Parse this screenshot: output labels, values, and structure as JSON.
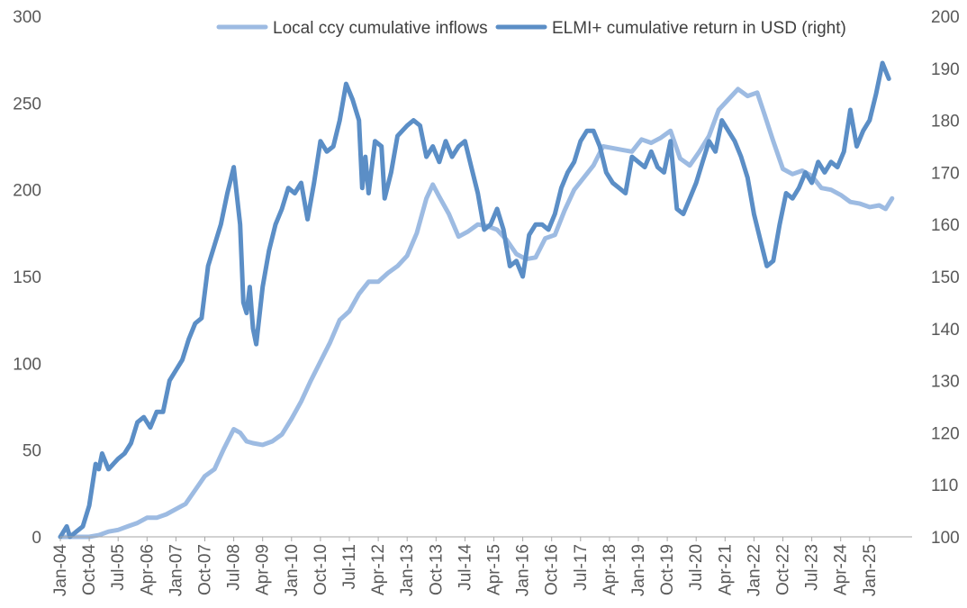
{
  "chart_data": {
    "type": "line",
    "title": "",
    "xlabel": "",
    "ylabel": "",
    "x_tick_labels": [
      "Jan-04",
      "Oct-04",
      "Jul-05",
      "Apr-06",
      "Jan-07",
      "Oct-07",
      "Jul-08",
      "Apr-09",
      "Jan-10",
      "Oct-10",
      "Jul-11",
      "Apr-12",
      "Jan-13",
      "Oct-13",
      "Jul-14",
      "Apr-15",
      "Jan-16",
      "Oct-16",
      "Jul-17",
      "Apr-18",
      "Jan-19",
      "Oct-19",
      "Jul-20",
      "Apr-21",
      "Jan-22",
      "Oct-22",
      "Jul-23",
      "Apr-24",
      "Jan-25"
    ],
    "y_left": {
      "ylim": [
        0,
        300
      ],
      "ticks": [
        "0",
        "50",
        "100",
        "150",
        "200",
        "250",
        "300"
      ]
    },
    "y_right": {
      "ylim": [
        100,
        200
      ],
      "ticks": [
        "100",
        "110",
        "120",
        "130",
        "140",
        "150",
        "160",
        "170",
        "180",
        "190",
        "200"
      ]
    },
    "legend_position": "top",
    "grid": false,
    "series": [
      {
        "name": "Local ccy cumulative inflows",
        "axis": "left",
        "color": "#9dbbe2",
        "points": [
          [
            "2004-01",
            0
          ],
          [
            "2004-10",
            0
          ],
          [
            "2005-01",
            1
          ],
          [
            "2005-04",
            3
          ],
          [
            "2005-07",
            4
          ],
          [
            "2005-10",
            6
          ],
          [
            "2006-01",
            8
          ],
          [
            "2006-04",
            11
          ],
          [
            "2006-07",
            11
          ],
          [
            "2006-10",
            13
          ],
          [
            "2007-01",
            16
          ],
          [
            "2007-04",
            19
          ],
          [
            "2007-07",
            27
          ],
          [
            "2007-10",
            35
          ],
          [
            "2008-01",
            39
          ],
          [
            "2008-04",
            51
          ],
          [
            "2008-07",
            62
          ],
          [
            "2008-09",
            60
          ],
          [
            "2008-11",
            55
          ],
          [
            "2009-01",
            54
          ],
          [
            "2009-04",
            53
          ],
          [
            "2009-07",
            55
          ],
          [
            "2009-10",
            59
          ],
          [
            "2010-01",
            68
          ],
          [
            "2010-04",
            78
          ],
          [
            "2010-07",
            90
          ],
          [
            "2010-10",
            101
          ],
          [
            "2011-01",
            112
          ],
          [
            "2011-04",
            125
          ],
          [
            "2011-07",
            130
          ],
          [
            "2011-10",
            140
          ],
          [
            "2012-01",
            147
          ],
          [
            "2012-04",
            147
          ],
          [
            "2012-07",
            152
          ],
          [
            "2012-10",
            156
          ],
          [
            "2013-01",
            162
          ],
          [
            "2013-04",
            175
          ],
          [
            "2013-07",
            195
          ],
          [
            "2013-09",
            203
          ],
          [
            "2013-11",
            196
          ],
          [
            "2014-02",
            186
          ],
          [
            "2014-05",
            173
          ],
          [
            "2014-08",
            176
          ],
          [
            "2014-11",
            180
          ],
          [
            "2015-02",
            179
          ],
          [
            "2015-05",
            177
          ],
          [
            "2015-08",
            171
          ],
          [
            "2015-11",
            163
          ],
          [
            "2016-02",
            160
          ],
          [
            "2016-05",
            161
          ],
          [
            "2016-08",
            172
          ],
          [
            "2016-11",
            174
          ],
          [
            "2017-02",
            188
          ],
          [
            "2017-05",
            200
          ],
          [
            "2017-08",
            207
          ],
          [
            "2017-11",
            214
          ],
          [
            "2018-02",
            225
          ],
          [
            "2018-05",
            224
          ],
          [
            "2018-08",
            223
          ],
          [
            "2018-11",
            222
          ],
          [
            "2019-02",
            229
          ],
          [
            "2019-05",
            227
          ],
          [
            "2019-08",
            230
          ],
          [
            "2019-11",
            234
          ],
          [
            "2020-02",
            218
          ],
          [
            "2020-05",
            214
          ],
          [
            "2020-08",
            222
          ],
          [
            "2020-11",
            231
          ],
          [
            "2021-02",
            246
          ],
          [
            "2021-05",
            252
          ],
          [
            "2021-08",
            258
          ],
          [
            "2021-11",
            254
          ],
          [
            "2022-02",
            256
          ],
          [
            "2022-04",
            245
          ],
          [
            "2022-07",
            228
          ],
          [
            "2022-10",
            212
          ],
          [
            "2023-01",
            209
          ],
          [
            "2023-04",
            211
          ],
          [
            "2023-07",
            208
          ],
          [
            "2023-10",
            201
          ],
          [
            "2024-01",
            200
          ],
          [
            "2024-04",
            197
          ],
          [
            "2024-07",
            193
          ],
          [
            "2024-10",
            192
          ],
          [
            "2025-01",
            190
          ],
          [
            "2025-04",
            191
          ],
          [
            "2025-06",
            189
          ],
          [
            "2025-08",
            195
          ]
        ]
      },
      {
        "name": "ELMI+ cumulative return in USD (right)",
        "axis": "right",
        "color": "#5b8ec6",
        "points": [
          [
            "2004-01",
            100
          ],
          [
            "2004-03",
            102
          ],
          [
            "2004-04",
            100
          ],
          [
            "2004-06",
            101
          ],
          [
            "2004-08",
            102
          ],
          [
            "2004-10",
            106
          ],
          [
            "2004-12",
            114
          ],
          [
            "2005-01",
            113
          ],
          [
            "2005-02",
            116
          ],
          [
            "2005-04",
            113
          ],
          [
            "2005-07",
            115
          ],
          [
            "2005-09",
            116
          ],
          [
            "2005-11",
            118
          ],
          [
            "2006-01",
            122
          ],
          [
            "2006-03",
            123
          ],
          [
            "2006-05",
            121
          ],
          [
            "2006-07",
            124
          ],
          [
            "2006-09",
            124
          ],
          [
            "2006-11",
            130
          ],
          [
            "2007-01",
            132
          ],
          [
            "2007-03",
            134
          ],
          [
            "2007-05",
            138
          ],
          [
            "2007-07",
            141
          ],
          [
            "2007-09",
            142
          ],
          [
            "2007-11",
            152
          ],
          [
            "2008-01",
            156
          ],
          [
            "2008-03",
            160
          ],
          [
            "2008-05",
            166
          ],
          [
            "2008-07",
            171
          ],
          [
            "2008-09",
            160
          ],
          [
            "2008-10",
            145
          ],
          [
            "2008-11",
            143
          ],
          [
            "2008-12",
            148
          ],
          [
            "2009-01",
            140
          ],
          [
            "2009-02",
            137
          ],
          [
            "2009-04",
            148
          ],
          [
            "2009-06",
            155
          ],
          [
            "2009-08",
            160
          ],
          [
            "2009-10",
            163
          ],
          [
            "2009-12",
            167
          ],
          [
            "2010-02",
            166
          ],
          [
            "2010-04",
            168
          ],
          [
            "2010-06",
            161
          ],
          [
            "2010-08",
            168
          ],
          [
            "2010-10",
            176
          ],
          [
            "2010-12",
            174
          ],
          [
            "2011-02",
            175
          ],
          [
            "2011-04",
            180
          ],
          [
            "2011-06",
            187
          ],
          [
            "2011-08",
            184
          ],
          [
            "2011-10",
            180
          ],
          [
            "2011-11",
            167
          ],
          [
            "2011-12",
            173
          ],
          [
            "2012-01",
            166
          ],
          [
            "2012-03",
            176
          ],
          [
            "2012-05",
            175
          ],
          [
            "2012-06",
            165
          ],
          [
            "2012-08",
            170
          ],
          [
            "2012-10",
            177
          ],
          [
            "2013-01",
            179
          ],
          [
            "2013-03",
            180
          ],
          [
            "2013-05",
            179
          ],
          [
            "2013-07",
            173
          ],
          [
            "2013-09",
            175
          ],
          [
            "2013-11",
            172
          ],
          [
            "2014-01",
            176
          ],
          [
            "2014-03",
            173
          ],
          [
            "2014-05",
            175
          ],
          [
            "2014-07",
            176
          ],
          [
            "2014-09",
            171
          ],
          [
            "2014-11",
            166
          ],
          [
            "2015-01",
            159
          ],
          [
            "2015-03",
            160
          ],
          [
            "2015-05",
            163
          ],
          [
            "2015-07",
            159
          ],
          [
            "2015-09",
            152
          ],
          [
            "2015-11",
            153
          ],
          [
            "2016-01",
            150
          ],
          [
            "2016-03",
            158
          ],
          [
            "2016-05",
            160
          ],
          [
            "2016-07",
            160
          ],
          [
            "2016-09",
            159
          ],
          [
            "2016-11",
            162
          ],
          [
            "2017-01",
            167
          ],
          [
            "2017-03",
            170
          ],
          [
            "2017-05",
            172
          ],
          [
            "2017-07",
            176
          ],
          [
            "2017-09",
            178
          ],
          [
            "2017-11",
            178
          ],
          [
            "2018-01",
            175
          ],
          [
            "2018-03",
            170
          ],
          [
            "2018-05",
            168
          ],
          [
            "2018-07",
            167
          ],
          [
            "2018-09",
            166
          ],
          [
            "2018-11",
            173
          ],
          [
            "2019-01",
            172
          ],
          [
            "2019-03",
            171
          ],
          [
            "2019-05",
            174
          ],
          [
            "2019-07",
            171
          ],
          [
            "2019-09",
            170
          ],
          [
            "2019-11",
            176
          ],
          [
            "2020-01",
            163
          ],
          [
            "2020-03",
            162
          ],
          [
            "2020-05",
            165
          ],
          [
            "2020-07",
            168
          ],
          [
            "2020-09",
            172
          ],
          [
            "2020-11",
            176
          ],
          [
            "2021-01",
            174
          ],
          [
            "2021-03",
            180
          ],
          [
            "2021-05",
            178
          ],
          [
            "2021-07",
            176
          ],
          [
            "2021-09",
            173
          ],
          [
            "2021-11",
            169
          ],
          [
            "2022-01",
            162
          ],
          [
            "2022-03",
            157
          ],
          [
            "2022-05",
            152
          ],
          [
            "2022-07",
            153
          ],
          [
            "2022-09",
            160
          ],
          [
            "2022-11",
            166
          ],
          [
            "2023-01",
            165
          ],
          [
            "2023-03",
            167
          ],
          [
            "2023-05",
            170
          ],
          [
            "2023-07",
            168
          ],
          [
            "2023-09",
            172
          ],
          [
            "2023-11",
            170
          ],
          [
            "2024-01",
            172
          ],
          [
            "2024-03",
            171
          ],
          [
            "2024-05",
            174
          ],
          [
            "2024-07",
            182
          ],
          [
            "2024-09",
            175
          ],
          [
            "2024-11",
            178
          ],
          [
            "2025-01",
            180
          ],
          [
            "2025-03",
            185
          ],
          [
            "2025-05",
            191
          ],
          [
            "2025-07",
            188
          ]
        ]
      }
    ]
  }
}
